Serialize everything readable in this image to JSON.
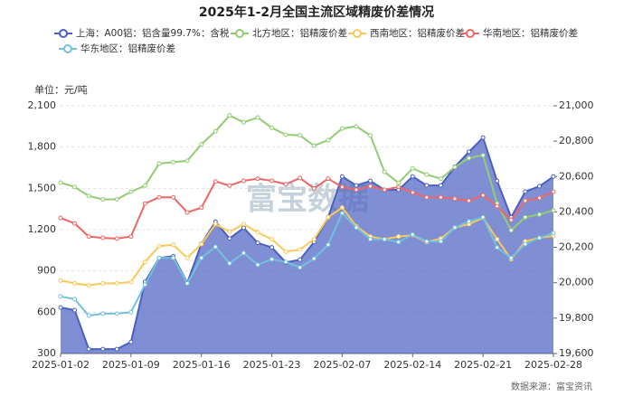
{
  "chart_data": {
    "type": "line",
    "title": "2025年1-2月全国主流区域精废价差情况",
    "y_label": "单位：元/吨",
    "source": "数据来源：富宝资讯",
    "watermark": "富宝数据",
    "categories": [
      "2025-01-02",
      null,
      null,
      null,
      null,
      "2025-01-09",
      null,
      null,
      null,
      null,
      "2025-01-16",
      null,
      null,
      null,
      null,
      "2025-01-23",
      null,
      null,
      null,
      null,
      "2025-02-07",
      null,
      null,
      null,
      null,
      "2025-02-14",
      null,
      null,
      null,
      null,
      "2025-02-21",
      null,
      null,
      null,
      null,
      "2025-02-28"
    ],
    "ylim": [
      300,
      2100
    ],
    "yticks": [
      300,
      600,
      900,
      {
        "value": 1200,
        "label": "1,200"
      },
      {
        "value": 1500,
        "label": "1,500"
      },
      {
        "value": 1800,
        "label": "1,800"
      },
      {
        "value": 2100,
        "label": "2,100"
      }
    ],
    "y2lim": [
      19600,
      21000
    ],
    "y2ticks": [
      {
        "value": 19600,
        "label": "19,600"
      },
      {
        "value": 19800,
        "label": "19,800"
      },
      {
        "value": 20000,
        "label": "20,000"
      },
      {
        "value": 20200,
        "label": "20,200"
      },
      {
        "value": 20400,
        "label": "20,400"
      },
      {
        "value": 20600,
        "label": "20,600"
      },
      {
        "value": 20800,
        "label": "20,800"
      },
      {
        "value": 21000,
        "label": "21,000"
      }
    ],
    "grid": true,
    "series": [
      {
        "name": "上海：A00铝：铝含量99.7%：含税",
        "color": "#4a5fc1",
        "axis": "y2",
        "area": true,
        "values": [
          19860,
          19845,
          19625,
          19625,
          19625,
          19665,
          20005,
          20140,
          20150,
          20000,
          20220,
          20345,
          20250,
          20310,
          20225,
          20200,
          20115,
          20130,
          20230,
          20370,
          20600,
          20550,
          20575,
          20525,
          20525,
          20600,
          20550,
          20550,
          20655,
          20740,
          20820,
          20575,
          20370,
          20515,
          20545,
          20600
        ]
      },
      {
        "name": "北方地区：铝精废价差",
        "color": "#91cc75",
        "values": [
          1542,
          1510,
          1445,
          1420,
          1420,
          1475,
          1520,
          1680,
          1690,
          1700,
          1820,
          1915,
          2030,
          1980,
          2015,
          1940,
          1890,
          1885,
          1810,
          1850,
          1935,
          1950,
          1885,
          1620,
          1540,
          1645,
          1600,
          1570,
          1655,
          1720,
          1740,
          1390,
          1195,
          1290,
          1310,
          1340
        ]
      },
      {
        "name": "西南地区：铝精废价差",
        "color": "#fac858",
        "values": [
          830,
          810,
          795,
          810,
          810,
          820,
          965,
          1080,
          1090,
          995,
          1095,
          1240,
          1185,
          1240,
          1180,
          1130,
          1040,
          1055,
          1130,
          1290,
          1360,
          1225,
          1150,
          1130,
          1150,
          1160,
          1110,
          1135,
          1215,
          1240,
          1285,
          1130,
          985,
          1115,
          1140,
          1155
        ]
      },
      {
        "name": "华南地区：铝精废价差",
        "color": "#ee6666",
        "values": [
          1285,
          1245,
          1150,
          1140,
          1135,
          1150,
          1390,
          1435,
          1435,
          1325,
          1360,
          1550,
          1520,
          1555,
          1570,
          1555,
          1530,
          1575,
          1500,
          1570,
          1510,
          1490,
          1515,
          1490,
          1510,
          1470,
          1435,
          1435,
          1425,
          1410,
          1450,
          1370,
          1270,
          1410,
          1430,
          1475
        ]
      },
      {
        "name": "华东地区：铝精废价差",
        "color": "#73c0de",
        "values": [
          715,
          695,
          575,
          590,
          590,
          600,
          800,
          995,
          995,
          810,
          995,
          1075,
          955,
          1030,
          945,
          985,
          965,
          925,
          990,
          1090,
          1320,
          1215,
          1130,
          1130,
          1110,
          1165,
          1115,
          1115,
          1215,
          1260,
          1290,
          1070,
          995,
          1095,
          1140,
          1175
        ]
      }
    ]
  }
}
